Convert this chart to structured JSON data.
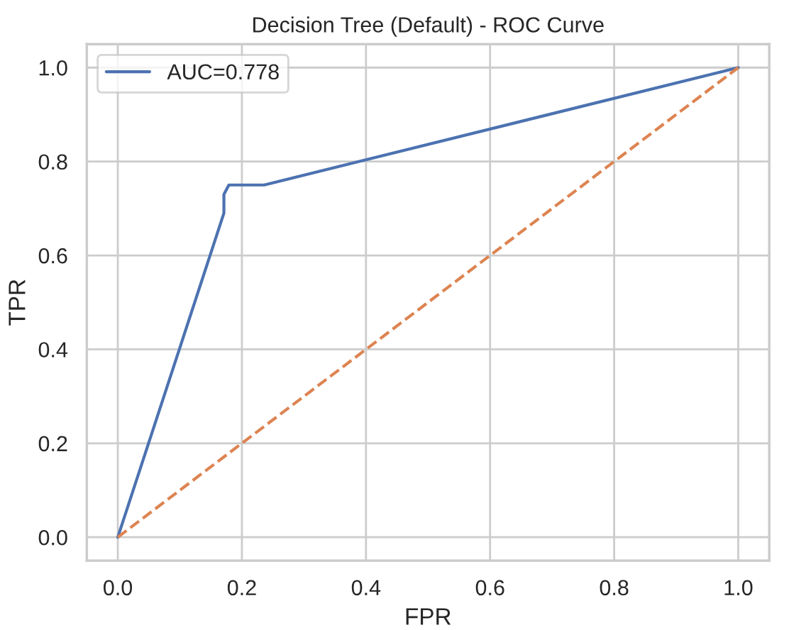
{
  "chart_data": {
    "type": "line",
    "title": "Decision Tree (Default) - ROC Curve",
    "xlabel": "FPR",
    "ylabel": "TPR",
    "series": [
      {
        "name": "AUC=0.778",
        "color": "#4c72b0",
        "x": [
          0,
          0.171,
          0.171,
          0.179,
          0.236,
          1
        ],
        "values": [
          0,
          0.69,
          0.73,
          0.75,
          0.75,
          1
        ],
        "line_style": "solid"
      },
      {
        "color": "#dd8452",
        "x": [
          0,
          1
        ],
        "values": [
          0,
          1
        ],
        "line_style": "dashed"
      }
    ],
    "xlim": [
      -0.05,
      1.05
    ],
    "ylim": [
      -0.05,
      1.05
    ],
    "xticks": [
      {
        "value": 0,
        "label": "0.0"
      },
      0.2,
      0.4,
      0.6,
      0.8,
      {
        "value": 1,
        "label": "1.0"
      }
    ],
    "yticks": [
      {
        "value": 0,
        "label": "0.0"
      },
      0.2,
      0.4,
      0.6,
      0.8,
      {
        "value": 1,
        "label": "1.0"
      }
    ],
    "grid": true,
    "legend": "top left"
  }
}
